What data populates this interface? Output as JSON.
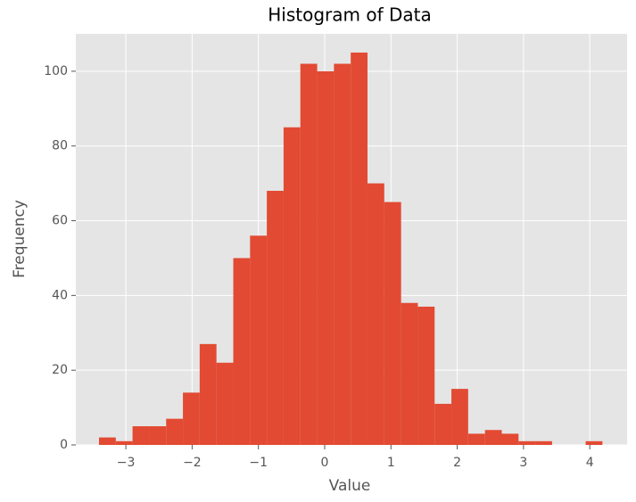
{
  "chart_data": {
    "type": "histogram",
    "title": "Histogram of Data",
    "x_label": "Value",
    "y_label": "Frequency",
    "bins": [
      -3.405,
      -3.152,
      -2.899,
      -2.645,
      -2.392,
      -2.139,
      -1.886,
      -1.633,
      -1.379,
      -1.126,
      -0.873,
      -0.62,
      -0.367,
      -0.113,
      0.14,
      0.393,
      0.646,
      0.899,
      1.153,
      1.406,
      1.659,
      1.912,
      2.165,
      2.419,
      2.672,
      2.925,
      3.178,
      3.431,
      3.685,
      3.938,
      4.191
    ],
    "values": [
      2,
      1,
      5,
      5,
      7,
      14,
      27,
      22,
      50,
      56,
      68,
      85,
      102,
      100,
      102,
      105,
      70,
      65,
      38,
      37,
      11,
      15,
      3,
      4,
      3,
      1,
      1,
      0,
      0,
      1
    ],
    "color": "#e24a33",
    "xlim": [
      -3.755,
      4.563
    ],
    "ylim": [
      0,
      110
    ],
    "xticks": [
      {
        "value": -3,
        "label": "−3"
      },
      {
        "value": -2,
        "label": "−2"
      },
      {
        "value": -1,
        "label": "−1"
      },
      0,
      1,
      2,
      3,
      4
    ],
    "yticks": [
      0,
      20,
      40,
      60,
      80,
      100
    ],
    "grid": true
  }
}
